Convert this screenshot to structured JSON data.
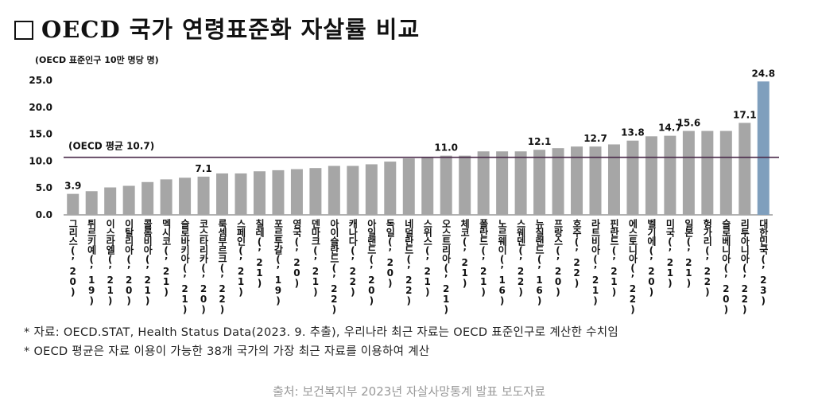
{
  "title": "OECD 국가 연령표준화 자살률 비교",
  "unit": "(OECD 표준인구 10만 명당 명)",
  "notes": [
    "* 자료: OECD.STAT, Health Status Data(2023. 9. 추출), 우리나라 최근 자료는 OECD 표준인구로 계산한 수치임",
    "* OECD 평균은 자료 이용이 가능한 38개 국가의 가장 최근 자료를 이용하여 계산"
  ],
  "source": "출처: 보건복지부 2023년 자살사망통계 발표 보도자료",
  "colors": {
    "bar": "#a6a6a6",
    "highlight": "#7f9fbd",
    "avg_line": "#4a2a4a"
  },
  "chart_data": {
    "type": "bar",
    "categories": [
      "그리스(’20)",
      "튀르키예(’19)",
      "이스라엘(’21)",
      "이탈리아(’20)",
      "콜롬비아(’21)",
      "멕시코(’21)",
      "슬로바키아(’21)",
      "코스타리카(’20)",
      "룩셈부르크(’22)",
      "스페인(’21)",
      "칠레(’21)",
      "포르투갈(’19)",
      "영국(’20)",
      "덴마크(’21)",
      "아이슬란드(’22)",
      "캐나다(’22)",
      "아일랜드(’20)",
      "독일(’20)",
      "네덜란드(’22)",
      "스위스(’21)",
      "오스트리아(’21)",
      "체코(’21)",
      "폴란드(’21)",
      "노르웨이(’16)",
      "스웨덴(’22)",
      "뉴질랜드(’16)",
      "프랑스(’20)",
      "호주(’22)",
      "라트비아(’21)",
      "핀란드(’21)",
      "에스토니아(’22)",
      "벨기에(’20)",
      "미국(’21)",
      "일본(’21)",
      "헝가리(’22)",
      "슬로베니아(’20)",
      "리투아니아(’22)",
      "대한민국(’23)"
    ],
    "values": [
      3.9,
      4.4,
      5.1,
      5.4,
      6.1,
      6.6,
      6.9,
      7.1,
      7.7,
      7.7,
      8.1,
      8.3,
      8.5,
      8.7,
      9.1,
      9.1,
      9.4,
      9.9,
      10.5,
      10.8,
      11.0,
      11.0,
      11.8,
      11.8,
      11.8,
      12.1,
      12.4,
      12.7,
      12.7,
      13.1,
      13.8,
      14.6,
      14.7,
      15.6,
      15.6,
      15.6,
      17.1,
      24.8
    ],
    "data_labels": {
      "0": "3.9",
      "7": "7.1",
      "20": "11.0",
      "25": "12.1",
      "28": "12.7",
      "30": "13.8",
      "32": "14.7",
      "33": "15.6",
      "36": "17.1",
      "37": "24.8"
    },
    "highlight_index": 37,
    "y_ticks": [
      "0.0",
      "5.0",
      "10.0",
      "15.0",
      "20.0",
      "25.0"
    ],
    "ylim": [
      0,
      25
    ],
    "average": {
      "value": 10.7,
      "label": "(OECD 평균 10.7)"
    }
  }
}
